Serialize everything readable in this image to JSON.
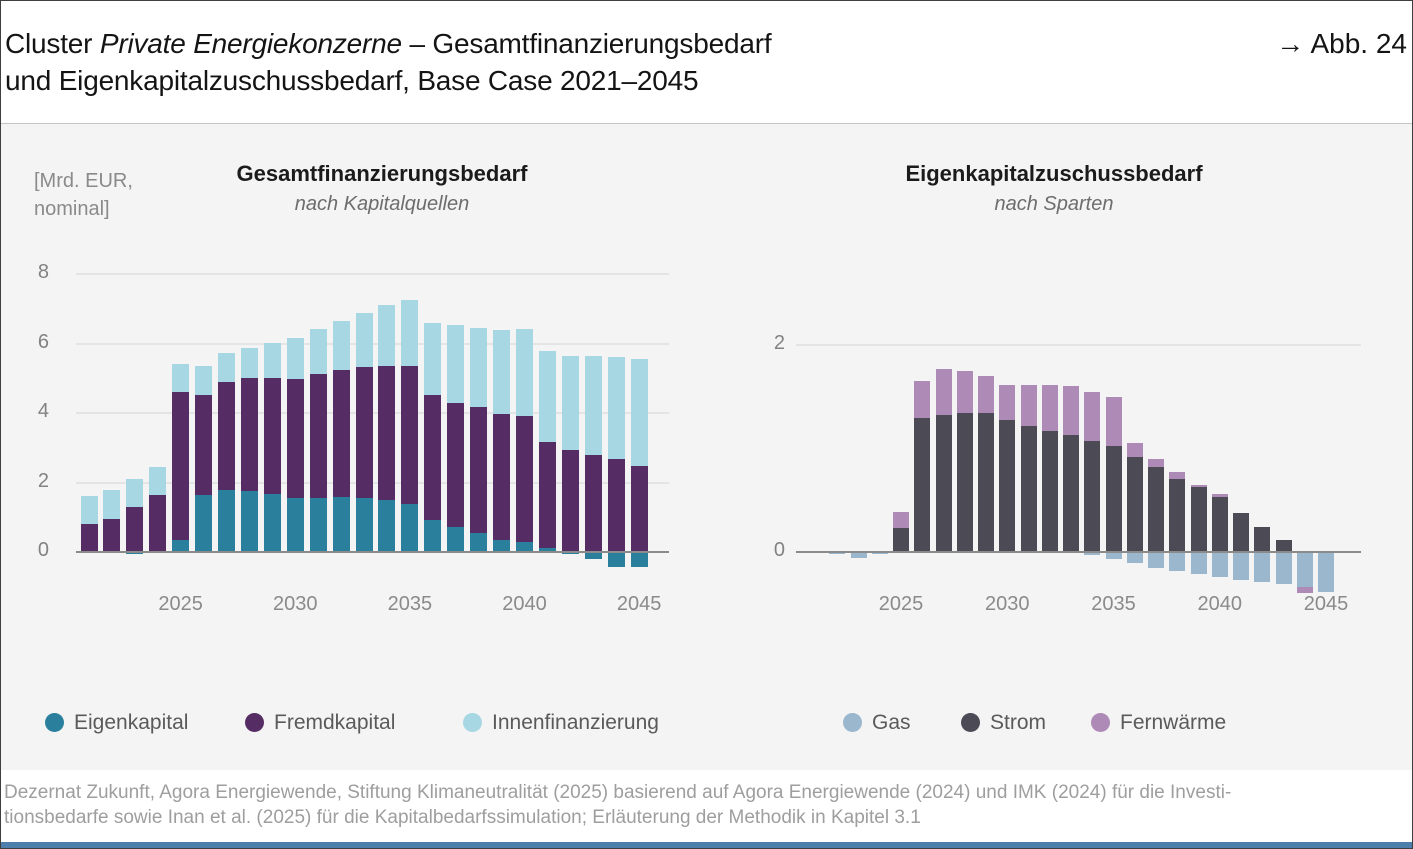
{
  "header": {
    "title_prefix": "Cluster ",
    "title_italic": "Private Energiekonzerne",
    "title_suffix": " – Gesamtfinanzierungsbedarf",
    "title_line2": "und Eigenkapitalzuschussbedarf, Base Case 2021–2045",
    "figure_ref": "→ Abb. 24"
  },
  "unit_label": {
    "line1": "[Mrd. EUR,",
    "line2": "nominal]"
  },
  "footer": {
    "line1": "Dezernat Zukunft, Agora Energiewende, Stiftung Klimaneutralität (2025) basierend auf Agora Energiewende (2024) und IMK (2024) für die Investi-",
    "line2": "tionsbedarfe sowie Inan et al. (2025) für die Kapitalbedarfssimulation; Erläuterung der Methodik in Kapitel 3.1"
  },
  "colors": {
    "band_background": "#f4f4f5",
    "gridline": "#e4e4e6",
    "axis": "#8a8a8a",
    "eigenkapital": "#2a7f9d",
    "fremdkapital": "#552c64",
    "innenfinanzierung": "#a6d7e2",
    "gas": "#9ab7ce",
    "strom": "#4b4a55",
    "fernwaerme": "#ae8ab7",
    "bottom_bar": "#4d7fad"
  },
  "chart_data": [
    {
      "type": "bar",
      "stacked": true,
      "title": "Gesamtfinanzierungsbedarf",
      "subtitle": "nach Kapitalquellen",
      "unit": "Mrd. EUR, nominal",
      "x": [
        2021,
        2022,
        2023,
        2024,
        2025,
        2026,
        2027,
        2028,
        2029,
        2030,
        2031,
        2032,
        2033,
        2034,
        2035,
        2036,
        2037,
        2038,
        2039,
        2040,
        2041,
        2042,
        2043,
        2044,
        2045
      ],
      "x_tick_labels": [
        "2025",
        "2030",
        "2035",
        "2040",
        "2045"
      ],
      "y_ticks": [
        0,
        2,
        4,
        6,
        8
      ],
      "ylim": [
        -0.7,
        8.7
      ],
      "grid": true,
      "legend_position": "bottom",
      "series": [
        {
          "name": "Eigenkapital",
          "color": "#2a7f9d",
          "values": [
            0,
            -0.03,
            -0.07,
            -0.02,
            0.35,
            1.63,
            1.77,
            1.76,
            1.68,
            1.56,
            1.56,
            1.58,
            1.56,
            1.51,
            1.39,
            0.91,
            0.72,
            0.55,
            0.35,
            0.29,
            0.12,
            -0.07,
            -0.21,
            -0.42,
            -0.42
          ]
        },
        {
          "name": "Fremdkapital",
          "color": "#552c64",
          "values": [
            0.82,
            0.96,
            1.3,
            1.63,
            4.24,
            2.9,
            3.12,
            3.25,
            3.34,
            3.43,
            3.57,
            3.67,
            3.76,
            3.83,
            3.95,
            3.6,
            3.57,
            3.62,
            3.61,
            3.61,
            3.05,
            2.93,
            2.8,
            2.67,
            2.47
          ]
        },
        {
          "name": "Innenfinanzierung",
          "color": "#a6d7e2",
          "values": [
            0.8,
            0.81,
            0.81,
            0.82,
            0.81,
            0.81,
            0.84,
            0.87,
            1.0,
            1.18,
            1.3,
            1.4,
            1.56,
            1.76,
            1.9,
            2.08,
            2.23,
            2.29,
            2.44,
            2.53,
            2.61,
            2.7,
            2.83,
            2.94,
            3.09
          ]
        }
      ]
    },
    {
      "type": "bar",
      "stacked": true,
      "title": "Eigenkapitalzuschussbedarf",
      "subtitle": "nach Sparten",
      "unit": "Mrd. EUR, nominal",
      "x": [
        2021,
        2022,
        2023,
        2024,
        2025,
        2026,
        2027,
        2028,
        2029,
        2030,
        2031,
        2032,
        2033,
        2034,
        2035,
        2036,
        2037,
        2038,
        2039,
        2040,
        2041,
        2042,
        2043,
        2044,
        2045
      ],
      "x_tick_labels": [
        "2025",
        "2030",
        "2035",
        "2040",
        "2045"
      ],
      "y_ticks": [
        0,
        2
      ],
      "ylim": [
        -0.55,
        2.1
      ],
      "grid": true,
      "legend_position": "bottom",
      "series": [
        {
          "name": "Gas",
          "color": "#9ab7ce",
          "values": [
            0,
            -0.02,
            -0.06,
            -0.02,
            0,
            0,
            0,
            0,
            0,
            0,
            0,
            0,
            0,
            -0.03,
            -0.07,
            -0.11,
            -0.15,
            -0.18,
            -0.21,
            -0.24,
            -0.27,
            -0.29,
            -0.31,
            -0.34,
            -0.39
          ]
        },
        {
          "name": "Strom",
          "color": "#4b4a55",
          "values": [
            0,
            0,
            0,
            0,
            0.23,
            1.29,
            1.32,
            1.34,
            1.34,
            1.28,
            1.22,
            1.17,
            1.13,
            1.07,
            1.02,
            0.92,
            0.82,
            0.71,
            0.63,
            0.53,
            0.38,
            0.24,
            0.12,
            0,
            0
          ]
        },
        {
          "name": "Fernwärme",
          "color": "#ae8ab7",
          "values": [
            0,
            0,
            0,
            0,
            0.16,
            0.36,
            0.45,
            0.41,
            0.36,
            0.33,
            0.39,
            0.44,
            0.47,
            0.48,
            0.48,
            0.13,
            0.08,
            0.06,
            0.02,
            0.03,
            0,
            0,
            0,
            -0.06,
            0
          ]
        }
      ]
    }
  ]
}
